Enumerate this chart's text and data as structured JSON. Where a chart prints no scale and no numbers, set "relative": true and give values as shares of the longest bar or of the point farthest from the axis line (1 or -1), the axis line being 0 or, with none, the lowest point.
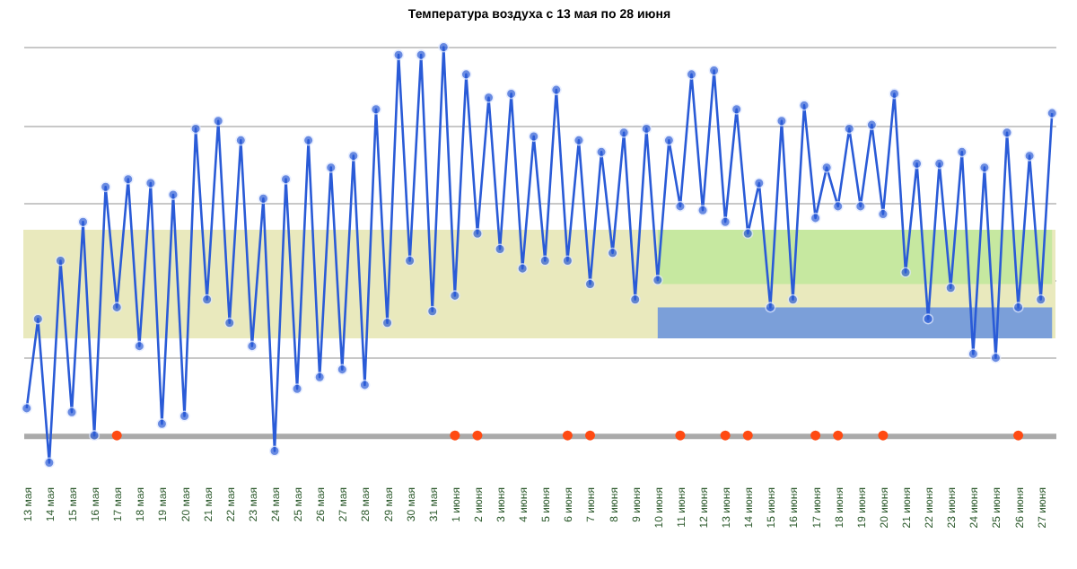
{
  "chart_data": {
    "type": "line",
    "title": "Температура воздуха с 13 мая по 28 июня",
    "relative": true,
    "grid": "y",
    "marker": "circle",
    "categories": [
      "13 мая",
      null,
      "14 мая",
      null,
      "15 мая",
      null,
      "16 мая",
      null,
      "17 мая",
      null,
      "18 мая",
      null,
      "19 мая",
      null,
      "20 мая",
      null,
      "21 мая",
      null,
      "22 мая",
      null,
      "23 мая",
      null,
      "24 мая",
      null,
      "25 мая",
      null,
      "26 мая",
      null,
      "27 мая",
      null,
      "28 мая",
      null,
      "29 мая",
      null,
      "30 мая",
      null,
      "31 мая",
      null,
      "1 июня",
      null,
      "2 июня",
      null,
      "3 июня",
      null,
      "4 июня",
      null,
      "5 июня",
      null,
      "6 июня",
      null,
      "7 июня",
      null,
      "8 июня",
      null,
      "9 июня",
      null,
      "10 июня",
      null,
      "11 июня",
      null,
      "12 июня",
      null,
      "13 июня",
      null,
      "14 июня",
      null,
      "15 июня",
      null,
      "16 июня",
      null,
      "17 июня",
      null,
      "18 июня",
      null,
      "19 июня",
      null,
      "20 июня",
      null,
      "21 июня",
      null,
      "22 июня",
      null,
      "23 июня",
      null,
      "24 июня",
      null,
      "25 июня",
      null,
      "26 июня",
      null,
      "27 июня",
      null
    ],
    "bands": [
      {
        "axis": "y",
        "from": 0.25,
        "to": 0.53,
        "color": "#e9e9bd"
      }
    ],
    "series": [
      {
        "type": "area",
        "color": "#c6e8a0",
        "values": [
          null,
          null,
          null,
          null,
          null,
          null,
          null,
          null,
          null,
          null,
          null,
          null,
          null,
          null,
          null,
          null,
          null,
          null,
          null,
          null,
          null,
          null,
          null,
          null,
          null,
          null,
          null,
          null,
          null,
          null,
          null,
          null,
          null,
          null,
          null,
          null,
          null,
          null,
          null,
          null,
          null,
          null,
          null,
          null,
          null,
          null,
          null,
          null,
          null,
          null,
          null,
          null,
          null,
          null,
          null,
          null,
          null,
          null,
          null,
          null,
          null,
          null,
          null,
          null,
          null,
          null,
          null,
          null,
          null,
          null,
          null,
          null,
          null,
          null,
          null,
          null,
          null,
          null,
          null,
          null,
          null,
          null,
          null,
          null,
          null,
          null,
          null,
          null,
          null,
          null,
          null,
          null
        ],
        "lower": [
          null,
          null,
          null,
          null,
          null,
          null,
          null,
          null,
          null,
          null,
          null,
          null,
          null,
          null,
          null,
          null,
          null,
          null,
          null,
          null,
          null,
          null,
          null,
          null,
          null,
          null,
          null,
          null,
          null,
          null,
          null,
          null,
          null,
          null,
          null,
          null,
          null,
          null,
          null,
          null,
          null,
          null,
          null,
          null,
          null,
          null,
          null,
          null,
          null,
          null,
          null,
          null,
          null,
          null,
          null,
          null,
          0.39,
          0.39,
          0.39,
          0.39,
          0.39,
          0.39,
          0.39,
          0.39,
          0.39,
          0.39,
          0.39,
          0.39,
          0.39,
          0.39,
          0.39,
          0.39,
          0.39,
          0.39,
          0.39,
          0.39,
          0.39,
          0.39,
          0.39,
          0.39,
          0.39,
          0.39,
          0.39,
          0.39,
          0.39,
          0.39,
          0.39,
          0.39,
          0.39,
          0.39,
          0.39,
          0.39
        ],
        "upper": [
          null,
          null,
          null,
          null,
          null,
          null,
          null,
          null,
          null,
          null,
          null,
          null,
          null,
          null,
          null,
          null,
          null,
          null,
          null,
          null,
          null,
          null,
          null,
          null,
          null,
          null,
          null,
          null,
          null,
          null,
          null,
          null,
          null,
          null,
          null,
          null,
          null,
          null,
          null,
          null,
          null,
          null,
          null,
          null,
          null,
          null,
          null,
          null,
          null,
          null,
          null,
          null,
          null,
          null,
          null,
          null,
          0.53,
          0.53,
          0.53,
          0.53,
          0.53,
          0.53,
          0.53,
          0.53,
          0.53,
          0.53,
          0.53,
          0.53,
          0.53,
          0.53,
          0.53,
          0.53,
          0.53,
          0.53,
          0.53,
          0.53,
          0.53,
          0.53,
          0.53,
          0.53,
          0.53,
          0.53,
          0.53,
          0.53,
          0.53,
          0.53,
          0.53,
          0.53,
          0.53,
          0.53,
          0.53,
          0.53
        ]
      },
      {
        "type": "area",
        "color": "#7b9fd9",
        "values": [
          null,
          null,
          null,
          null,
          null,
          null,
          null,
          null,
          null,
          null,
          null,
          null,
          null,
          null,
          null,
          null,
          null,
          null,
          null,
          null,
          null,
          null,
          null,
          null,
          null,
          null,
          null,
          null,
          null,
          null,
          null,
          null,
          null,
          null,
          null,
          null,
          null,
          null,
          null,
          null,
          null,
          null,
          null,
          null,
          null,
          null,
          null,
          null,
          null,
          null,
          null,
          null,
          null,
          null,
          null,
          null,
          null,
          null,
          null,
          null,
          null,
          null,
          null,
          null,
          null,
          null,
          null,
          null,
          null,
          null,
          null,
          null,
          null,
          null,
          null,
          null,
          null,
          null,
          null,
          null,
          null,
          null,
          null,
          null,
          null,
          null,
          null,
          null,
          null,
          null,
          null,
          null
        ],
        "lower": [
          null,
          null,
          null,
          null,
          null,
          null,
          null,
          null,
          null,
          null,
          null,
          null,
          null,
          null,
          null,
          null,
          null,
          null,
          null,
          null,
          null,
          null,
          null,
          null,
          null,
          null,
          null,
          null,
          null,
          null,
          null,
          null,
          null,
          null,
          null,
          null,
          null,
          null,
          null,
          null,
          null,
          null,
          null,
          null,
          null,
          null,
          null,
          null,
          null,
          null,
          null,
          null,
          null,
          null,
          null,
          null,
          0.25,
          0.25,
          0.25,
          0.25,
          0.25,
          0.25,
          0.25,
          0.25,
          0.25,
          0.25,
          0.25,
          0.25,
          0.25,
          0.25,
          0.25,
          0.25,
          0.25,
          0.25,
          0.25,
          0.25,
          0.25,
          0.25,
          0.25,
          0.25,
          0.25,
          0.25,
          0.25,
          0.25,
          0.25,
          0.25,
          0.25,
          0.25,
          0.25,
          0.25,
          0.25,
          0.25
        ],
        "upper": [
          null,
          null,
          null,
          null,
          null,
          null,
          null,
          null,
          null,
          null,
          null,
          null,
          null,
          null,
          null,
          null,
          null,
          null,
          null,
          null,
          null,
          null,
          null,
          null,
          null,
          null,
          null,
          null,
          null,
          null,
          null,
          null,
          null,
          null,
          null,
          null,
          null,
          null,
          null,
          null,
          null,
          null,
          null,
          null,
          null,
          null,
          null,
          null,
          null,
          null,
          null,
          null,
          null,
          null,
          null,
          null,
          0.33,
          0.33,
          0.33,
          0.33,
          0.33,
          0.33,
          0.33,
          0.33,
          0.33,
          0.33,
          0.33,
          0.33,
          0.33,
          0.33,
          0.33,
          0.33,
          0.33,
          0.33,
          0.33,
          0.33,
          0.33,
          0.33,
          0.33,
          0.33,
          0.33,
          0.33,
          0.33,
          0.33,
          0.33,
          0.33,
          0.33,
          0.33,
          0.33,
          0.33,
          0.33,
          0.33
        ]
      },
      {
        "color": "#2a5bd7",
        "values": [
          0.07,
          0.3,
          -0.07,
          0.45,
          0.06,
          0.55,
          0,
          0.64,
          0.33,
          0.66,
          0.23,
          0.65,
          0.03,
          0.62,
          0.05,
          0.79,
          0.35,
          0.81,
          0.29,
          0.76,
          0.23,
          0.61,
          -0.04,
          0.66,
          0.12,
          0.76,
          0.15,
          0.69,
          0.17,
          0.72,
          0.13,
          0.84,
          0.29,
          0.98,
          0.45,
          0.98,
          0.32,
          1,
          0.36,
          0.93,
          0.52,
          0.87,
          0.48,
          0.88,
          0.43,
          0.77,
          0.45,
          0.89,
          0.45,
          0.76,
          0.39,
          0.73,
          0.47,
          0.78,
          0.35,
          0.79,
          0.4,
          0.76,
          0.59,
          0.93,
          0.58,
          0.94,
          0.55,
          0.84,
          0.52,
          0.65,
          0.33,
          0.81,
          0.35,
          0.85,
          0.56,
          0.69,
          0.59,
          0.79,
          0.59,
          0.8,
          0.57,
          0.88,
          0.42,
          0.7,
          0.3,
          0.7,
          0.38,
          0.73,
          0.21,
          0.69,
          0.2,
          0.78,
          0.33,
          0.72,
          0.35,
          0.83
        ]
      },
      {
        "type": "scatter",
        "color": "#ff4a12",
        "values": [
          null,
          null,
          null,
          null,
          null,
          null,
          null,
          null,
          0,
          null,
          null,
          null,
          null,
          null,
          null,
          null,
          null,
          null,
          null,
          null,
          null,
          null,
          null,
          null,
          null,
          null,
          null,
          null,
          null,
          null,
          null,
          null,
          null,
          null,
          null,
          null,
          null,
          null,
          0,
          null,
          0,
          null,
          null,
          null,
          null,
          null,
          null,
          null,
          0,
          null,
          0,
          null,
          null,
          null,
          null,
          null,
          null,
          null,
          0,
          null,
          null,
          null,
          0,
          null,
          0,
          null,
          null,
          null,
          null,
          null,
          0,
          null,
          0,
          null,
          null,
          null,
          0,
          null,
          null,
          null,
          null,
          null,
          null,
          null,
          null,
          null,
          null,
          null,
          0,
          null,
          null,
          null
        ]
      }
    ]
  }
}
